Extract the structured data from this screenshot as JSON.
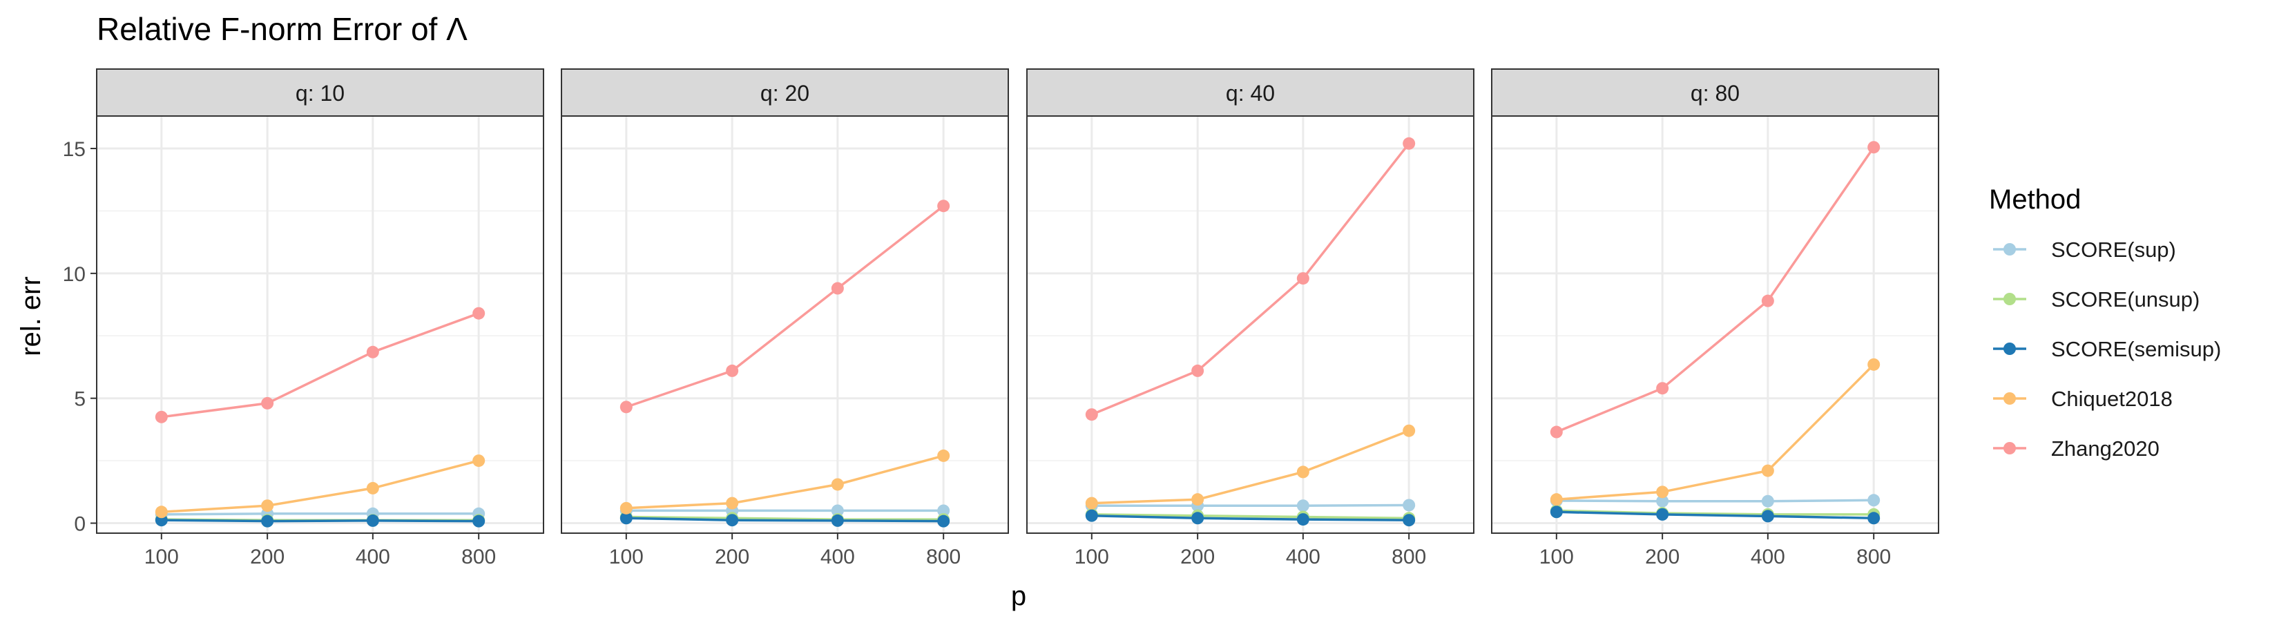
{
  "chart_data": {
    "type": "line",
    "title": "Relative F-norm Error of Λ",
    "xlabel": "p",
    "ylabel": "rel. err",
    "x_categories": [
      "100",
      "200",
      "400",
      "800"
    ],
    "ylim": [
      -0.4,
      16.3
    ],
    "yticks": [
      0,
      5,
      10,
      15
    ],
    "grid": true,
    "legend": {
      "title": "Method",
      "position": "right"
    },
    "facets": [
      {
        "label": "q: 10",
        "series": [
          {
            "name": "SCORE(sup)",
            "color": "#a6cee3",
            "values": [
              0.35,
              0.38,
              0.38,
              0.38
            ]
          },
          {
            "name": "SCORE(unsup)",
            "color": "#b2df8a",
            "values": [
              0.15,
              0.12,
              0.12,
              0.12
            ]
          },
          {
            "name": "SCORE(semisup)",
            "color": "#1f78b4",
            "values": [
              0.12,
              0.08,
              0.1,
              0.08
            ]
          },
          {
            "name": "Chiquet2018",
            "color": "#fdbf6f",
            "values": [
              0.45,
              0.7,
              1.4,
              2.5
            ]
          },
          {
            "name": "Zhang2020",
            "color": "#fb9a99",
            "values": [
              4.25,
              4.8,
              6.85,
              8.4
            ]
          }
        ]
      },
      {
        "label": "q: 20",
        "series": [
          {
            "name": "SCORE(sup)",
            "color": "#a6cee3",
            "values": [
              0.5,
              0.5,
              0.5,
              0.5
            ]
          },
          {
            "name": "SCORE(unsup)",
            "color": "#b2df8a",
            "values": [
              0.25,
              0.2,
              0.15,
              0.15
            ]
          },
          {
            "name": "SCORE(semisup)",
            "color": "#1f78b4",
            "values": [
              0.2,
              0.12,
              0.1,
              0.08
            ]
          },
          {
            "name": "Chiquet2018",
            "color": "#fdbf6f",
            "values": [
              0.6,
              0.8,
              1.55,
              2.7
            ]
          },
          {
            "name": "Zhang2020",
            "color": "#fb9a99",
            "values": [
              4.65,
              6.1,
              9.4,
              12.7
            ]
          }
        ]
      },
      {
        "label": "q: 40",
        "series": [
          {
            "name": "SCORE(sup)",
            "color": "#a6cee3",
            "values": [
              0.7,
              0.7,
              0.7,
              0.72
            ]
          },
          {
            "name": "SCORE(unsup)",
            "color": "#b2df8a",
            "values": [
              0.35,
              0.3,
              0.25,
              0.2
            ]
          },
          {
            "name": "SCORE(semisup)",
            "color": "#1f78b4",
            "values": [
              0.3,
              0.2,
              0.15,
              0.12
            ]
          },
          {
            "name": "Chiquet2018",
            "color": "#fdbf6f",
            "values": [
              0.8,
              0.95,
              2.05,
              3.7
            ]
          },
          {
            "name": "Zhang2020",
            "color": "#fb9a99",
            "values": [
              4.35,
              6.1,
              9.8,
              15.2
            ]
          }
        ]
      },
      {
        "label": "q: 80",
        "series": [
          {
            "name": "SCORE(sup)",
            "color": "#a6cee3",
            "values": [
              0.9,
              0.88,
              0.88,
              0.92
            ]
          },
          {
            "name": "SCORE(unsup)",
            "color": "#b2df8a",
            "values": [
              0.5,
              0.4,
              0.35,
              0.35
            ]
          },
          {
            "name": "SCORE(semisup)",
            "color": "#1f78b4",
            "values": [
              0.45,
              0.35,
              0.28,
              0.2
            ]
          },
          {
            "name": "Chiquet2018",
            "color": "#fdbf6f",
            "values": [
              0.95,
              1.25,
              2.1,
              6.35
            ]
          },
          {
            "name": "Zhang2020",
            "color": "#fb9a99",
            "values": [
              3.65,
              5.4,
              8.9,
              15.05
            ]
          }
        ]
      }
    ]
  }
}
